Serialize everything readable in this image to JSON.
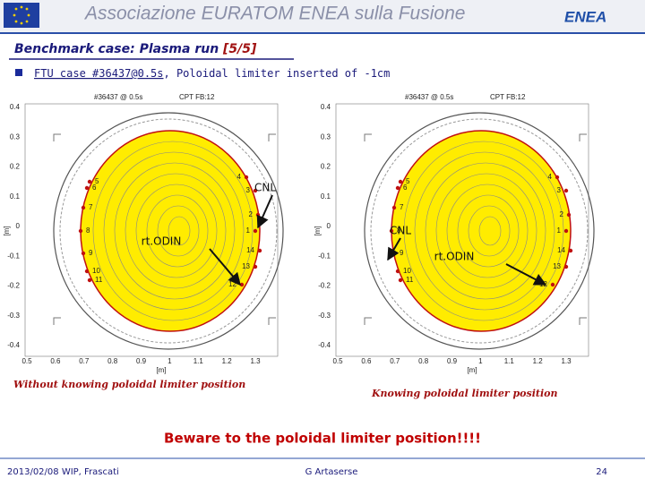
{
  "header": {
    "title": "Associazione EURATOM ENEA sulla Fusione",
    "logo": "ENEA"
  },
  "slide": {
    "title": "Benchmark case: Plasma run ",
    "title_part": "[5/5]",
    "subtitle_a": "FTU case #36437@0.5s",
    "subtitle_b": ", Poloidal limiter inserted of -1cm"
  },
  "plots": [
    {
      "shot": "#36437 @ 0.5s",
      "fb": "CPT FB:12",
      "ylabel": "[m]",
      "xlabel": "[m]",
      "yticks": [
        "0.4",
        "0.3",
        "0.2",
        "0.1",
        "0",
        "-0.1",
        "-0.2",
        "-0.3",
        "-0.4"
      ],
      "xticks": [
        "0.5",
        "0.6",
        "0.7",
        "0.8",
        "0.9",
        "1",
        "1.1",
        "1.2",
        "1.3"
      ],
      "probes": [
        "1",
        "2",
        "3",
        "4",
        "5",
        "6",
        "7",
        "8",
        "9",
        "10",
        "11",
        "12",
        "13",
        "14"
      ],
      "annotations": [
        "CNL",
        "rt.ODIN"
      ],
      "caption": "Without knowing poloidal limiter position"
    },
    {
      "shot": "#36437 @ 0.5s",
      "fb": "CPT FB:12",
      "ylabel": "[m]",
      "xlabel": "[m]",
      "yticks": [
        "0.4",
        "0.3",
        "0.2",
        "0.1",
        "0",
        "-0.1",
        "-0.2",
        "-0.3",
        "-0.4"
      ],
      "xticks": [
        "0.5",
        "0.6",
        "0.7",
        "0.8",
        "0.9",
        "1",
        "1.1",
        "1.2",
        "1.3"
      ],
      "probes": [
        "1",
        "2",
        "3",
        "4",
        "5",
        "6",
        "7",
        "8",
        "9",
        "10",
        "11",
        "12",
        "13",
        "14"
      ],
      "annotations": [
        "CNL",
        "rt.ODIN"
      ],
      "caption": "Knowing poloidal limiter position"
    }
  ],
  "warning": "Beware to the poloidal limiter position!!!!",
  "footer": {
    "left": "2013/02/08   WIP, Frascati",
    "center": "G Artaserse",
    "right": "24"
  }
}
